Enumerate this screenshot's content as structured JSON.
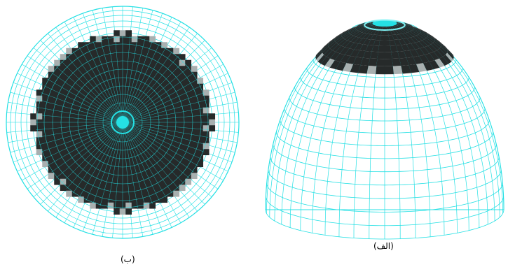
{
  "colors": {
    "mesh": "#25e0e4",
    "mesh_light": "#7ff2f4",
    "dark_fill": "#262a2a",
    "gap_fill": "#a8b0b0",
    "background": "#ffffff"
  },
  "figures": [
    {
      "id": "b",
      "view": "top",
      "caption": "(ب)"
    },
    {
      "id": "alef",
      "view": "perspective",
      "caption": "(الف)"
    }
  ]
}
